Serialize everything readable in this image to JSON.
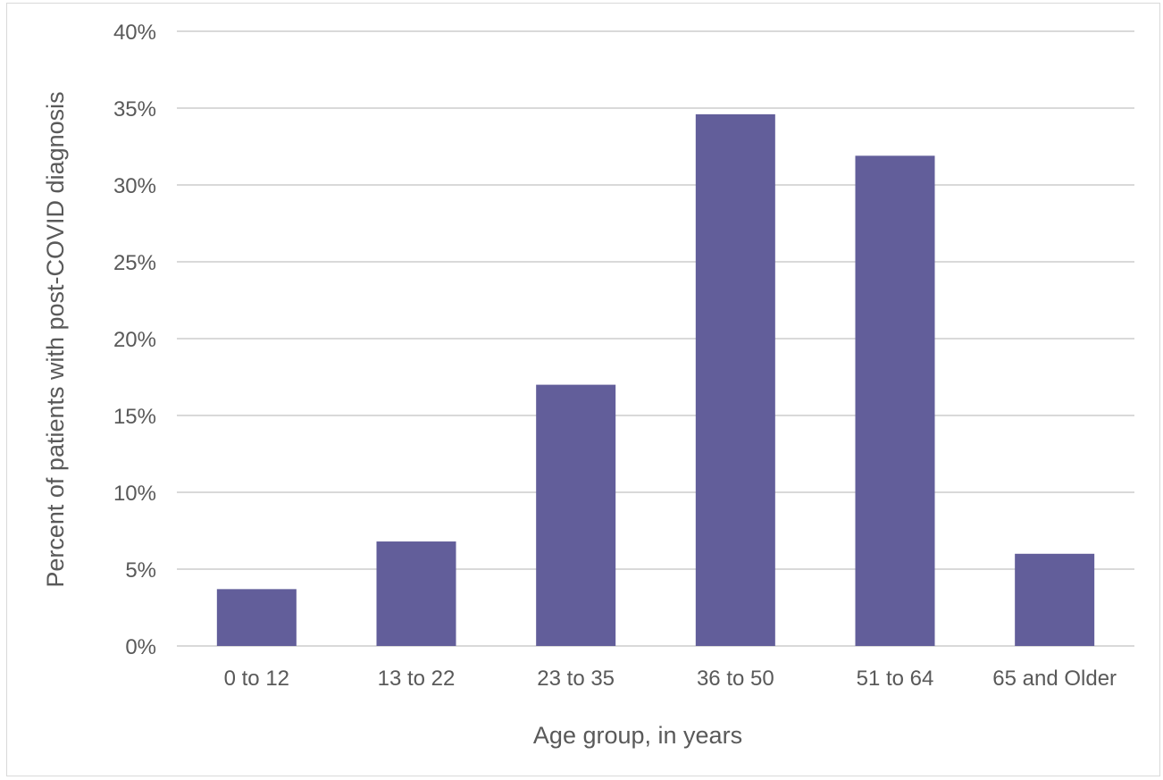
{
  "chart_data": {
    "type": "bar",
    "title": "",
    "xlabel": "Age group, in years",
    "ylabel": "Percent of patients with post-COVID diagnosis",
    "categories": [
      "0 to 12",
      "13 to 22",
      "23 to 35",
      "36 to 50",
      "51 to 64",
      "65 and Older"
    ],
    "values": [
      3.7,
      6.8,
      17.0,
      34.6,
      31.9,
      6.0
    ],
    "value_unit": "%",
    "ylim": [
      0,
      40
    ],
    "yticks": [
      "0%",
      "5%",
      "10%",
      "15%",
      "20%",
      "25%",
      "30%",
      "35%",
      "40%"
    ],
    "grid": true,
    "legend": "none",
    "bar_color": "#625e9a",
    "gridline_color": "#d9d9d9",
    "text_color": "#595959"
  }
}
